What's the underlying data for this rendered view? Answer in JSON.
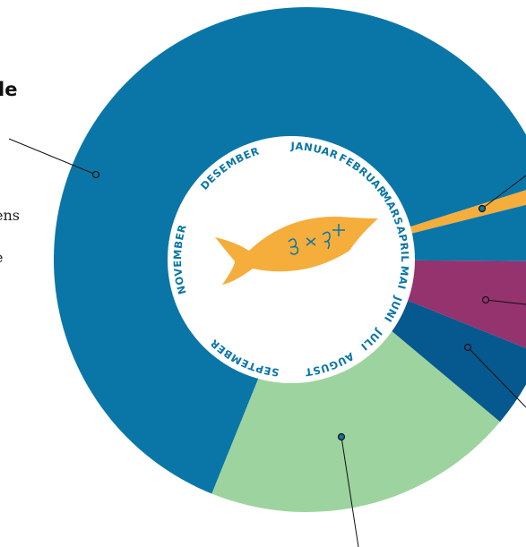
{
  "header": {
    "title": "le",
    "body": [
      "ens",
      "e"
    ]
  },
  "chart_data": {
    "type": "donut",
    "categories": [
      null,
      null,
      null,
      null,
      null,
      null
    ],
    "values": [
      64,
      1,
      4,
      6,
      5,
      20
    ],
    "colors": [
      "#0a76a8",
      "#f5ad3c",
      "#0a76a8",
      "#94336e",
      "#06598e",
      "#9dd39f"
    ],
    "months": [
      "JANUAR",
      "FEBRUAR",
      "MARS",
      "APRIL",
      "MAI",
      "JUNI",
      "JULI",
      "AUGUST",
      "SEPTEMBER",
      "NOVEMBER",
      "DESEMBER"
    ]
  }
}
